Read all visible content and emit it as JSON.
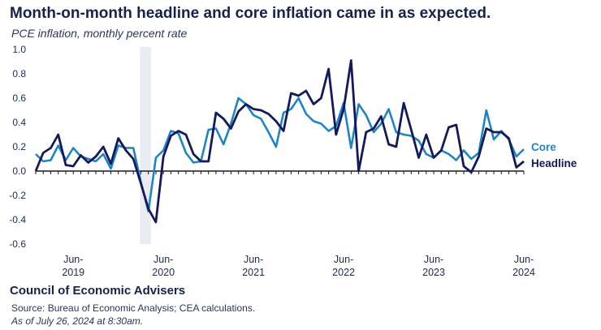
{
  "title": "Month-on-month headline and core inflation came in as expected.",
  "subtitle": "PCE inflation, monthly percent rate",
  "footer": {
    "org": "Council of Economic Advisers",
    "source": "Source: Bureau of Economic Analysis; CEA calculations.",
    "asof": "As of July 26, 2024 at 8:30am."
  },
  "chart_data": {
    "type": "line",
    "ylim": [
      -0.6,
      1.0
    ],
    "yticks": [
      "1.0",
      "0.8",
      "0.6",
      "0.4",
      "0.2",
      "0.0",
      "-0.2",
      "-0.4",
      "-0.6"
    ],
    "x_start": "2019-01",
    "x_end": "2024-06",
    "xticks": [
      {
        "month": "Jun",
        "year": "2019",
        "label": "Jun-\n2019"
      },
      {
        "month": "Jun",
        "year": "2020",
        "label": "Jun-\n2020"
      },
      {
        "month": "Jun",
        "year": "2021",
        "label": "Jun-\n2021"
      },
      {
        "month": "Jun",
        "year": "2022",
        "label": "Jun-\n2022"
      },
      {
        "month": "Jun",
        "year": "2023",
        "label": "Jun-\n2023"
      },
      {
        "month": "Jun",
        "year": "2024",
        "label": "Jun-\n2024"
      }
    ],
    "shaded_period": [
      "2020-03",
      "2020-04"
    ],
    "colors": {
      "headline": "#13195a",
      "core": "#1f84c6",
      "shade": "#e8ebf2"
    },
    "series": [
      {
        "name": "Core",
        "values": [
          0.14,
          0.08,
          0.09,
          0.21,
          0.09,
          0.19,
          0.12,
          0.1,
          0.08,
          0.14,
          0.02,
          0.21,
          0.19,
          0.19,
          -0.09,
          -0.33,
          0.11,
          0.17,
          0.33,
          0.31,
          0.15,
          0.07,
          0.08,
          0.34,
          0.35,
          0.22,
          0.39,
          0.6,
          0.55,
          0.46,
          0.43,
          0.32,
          0.2,
          0.48,
          0.51,
          0.6,
          0.47,
          0.41,
          0.39,
          0.33,
          0.37,
          0.56,
          0.19,
          0.55,
          0.46,
          0.32,
          0.39,
          0.51,
          0.32,
          0.3,
          0.29,
          0.25,
          0.14,
          0.11,
          0.17,
          0.14,
          0.09,
          0.17,
          0.1,
          0.15,
          0.5,
          0.26,
          0.33,
          0.26,
          0.12,
          0.18
        ]
      },
      {
        "name": "Headline",
        "values": [
          0.0,
          0.15,
          0.19,
          0.3,
          0.05,
          0.04,
          0.13,
          0.07,
          0.12,
          0.2,
          0.06,
          0.27,
          0.17,
          0.1,
          -0.1,
          -0.31,
          -0.42,
          0.12,
          0.29,
          0.33,
          0.3,
          0.14,
          0.08,
          0.08,
          0.48,
          0.43,
          0.35,
          0.49,
          0.55,
          0.51,
          0.5,
          0.47,
          0.41,
          0.33,
          0.64,
          0.62,
          0.66,
          0.55,
          0.6,
          0.84,
          0.3,
          0.51,
          0.91,
          0.0,
          0.32,
          0.35,
          0.45,
          0.22,
          0.2,
          0.56,
          0.34,
          0.11,
          0.3,
          0.11,
          0.17,
          0.36,
          0.38,
          0.04,
          -0.01,
          0.12,
          0.35,
          0.32,
          0.32,
          0.27,
          0.03,
          0.08
        ]
      }
    ]
  }
}
